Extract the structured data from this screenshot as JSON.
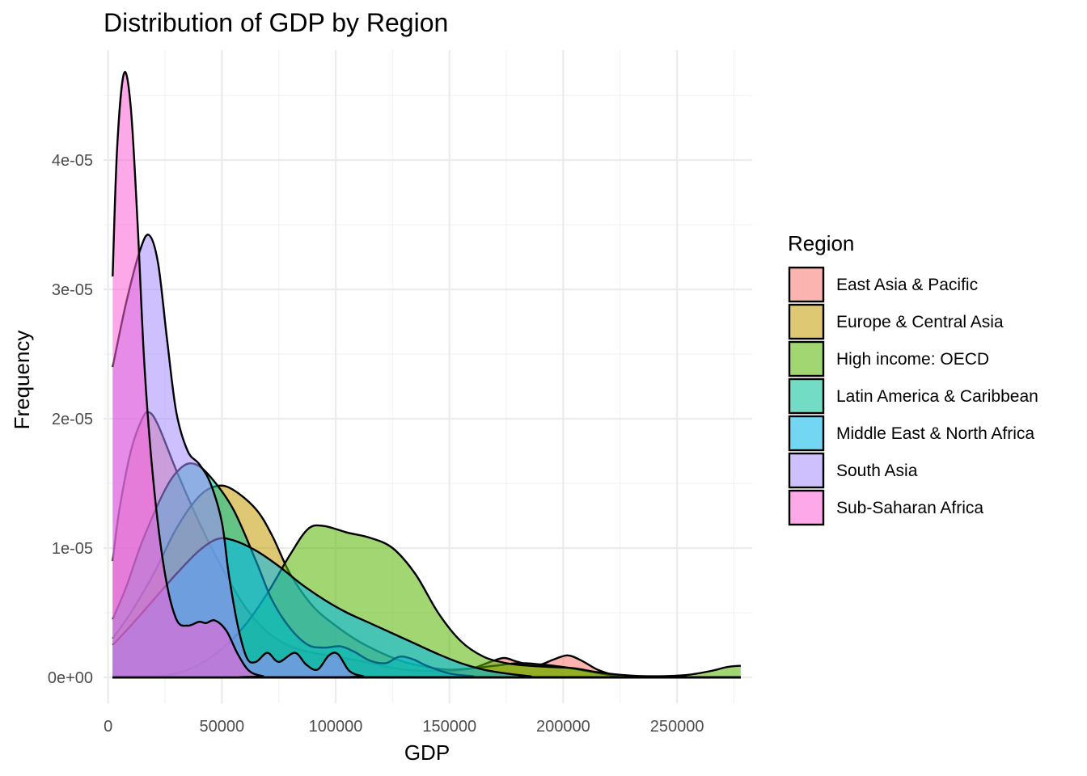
{
  "chart_data": {
    "type": "area",
    "title": "Distribution of GDP by Region",
    "xlabel": "GDP",
    "ylabel": "Frequency",
    "xlim": [
      -2000,
      283000
    ],
    "ylim": [
      -2e-06,
      4.85e-05
    ],
    "x_ticks": [
      0,
      50000,
      100000,
      150000,
      200000,
      250000
    ],
    "x_tick_labels": [
      "0",
      "50000",
      "100000",
      "150000",
      "200000",
      "250000"
    ],
    "y_ticks": [
      0,
      1e-05,
      2e-05,
      3e-05,
      4e-05
    ],
    "y_tick_labels": [
      "0e+00",
      "1e-05",
      "2e-05",
      "3e-05",
      "4e-05"
    ],
    "grid": true,
    "legend_title": "Region",
    "legend_position": "right",
    "fill_opacity": 0.55,
    "series": [
      {
        "name": "East Asia & Pacific",
        "color": "#F8766D",
        "points": [
          [
            2000,
            9e-06
          ],
          [
            5000,
            1.3e-05
          ],
          [
            10000,
            1.75e-05
          ],
          [
            15000,
            2e-05
          ],
          [
            18000,
            2.05e-05
          ],
          [
            22000,
            1.95e-05
          ],
          [
            30000,
            1.6e-05
          ],
          [
            40000,
            1.2e-05
          ],
          [
            50000,
            8.5e-06
          ],
          [
            60000,
            5.5e-06
          ],
          [
            70000,
            3.5e-06
          ],
          [
            80000,
            2.4e-06
          ],
          [
            90000,
            1.9e-06
          ],
          [
            100000,
            1.6e-06
          ],
          [
            110000,
            1.3e-06
          ],
          [
            120000,
            9e-07
          ],
          [
            130000,
            6e-07
          ],
          [
            140000,
            5e-07
          ],
          [
            150000,
            5e-07
          ],
          [
            160000,
            7e-07
          ],
          [
            168000,
            1.2e-06
          ],
          [
            174000,
            1.5e-06
          ],
          [
            180000,
            1.2e-06
          ],
          [
            188000,
            9e-07
          ],
          [
            196000,
            1.4e-06
          ],
          [
            202000,
            1.7e-06
          ],
          [
            208000,
            1.3e-06
          ],
          [
            215000,
            6e-07
          ],
          [
            222000,
            2e-07
          ],
          [
            230000,
            0
          ],
          [
            278000,
            0
          ]
        ]
      },
      {
        "name": "Europe & Central Asia",
        "color": "#C49A00",
        "points": [
          [
            2000,
            3e-06
          ],
          [
            10000,
            5e-06
          ],
          [
            20000,
            8e-06
          ],
          [
            30000,
            1.15e-05
          ],
          [
            40000,
            1.4e-05
          ],
          [
            48000,
            1.48e-05
          ],
          [
            55000,
            1.45e-05
          ],
          [
            65000,
            1.3e-05
          ],
          [
            72000,
            1.1e-05
          ],
          [
            80000,
            8e-06
          ],
          [
            90000,
            5.5e-06
          ],
          [
            100000,
            4e-06
          ],
          [
            110000,
            2.8e-06
          ],
          [
            120000,
            1.9e-06
          ],
          [
            130000,
            1.2e-06
          ],
          [
            140000,
            8e-07
          ],
          [
            150000,
            6e-07
          ],
          [
            160000,
            7e-07
          ],
          [
            170000,
            9e-07
          ],
          [
            180000,
            1.1e-06
          ],
          [
            190000,
            1e-06
          ],
          [
            200000,
            8e-07
          ],
          [
            210000,
            5e-07
          ],
          [
            220000,
            2e-07
          ],
          [
            230000,
            0
          ],
          [
            278000,
            0
          ]
        ]
      },
      {
        "name": "High income: OECD",
        "color": "#53B400",
        "points": [
          [
            2000,
            1e-07
          ],
          [
            20000,
            1e-07
          ],
          [
            30000,
            3e-07
          ],
          [
            40000,
            1e-06
          ],
          [
            50000,
            2.2e-06
          ],
          [
            60000,
            4e-06
          ],
          [
            70000,
            6.5e-06
          ],
          [
            80000,
            9.5e-06
          ],
          [
            88000,
            1.15e-05
          ],
          [
            95000,
            1.17e-05
          ],
          [
            105000,
            1.12e-05
          ],
          [
            115000,
            1.08e-05
          ],
          [
            125000,
            1e-05
          ],
          [
            135000,
            8e-06
          ],
          [
            145000,
            5e-06
          ],
          [
            155000,
            2.8e-06
          ],
          [
            165000,
            1.6e-06
          ],
          [
            175000,
            1.1e-06
          ],
          [
            185000,
            9e-07
          ],
          [
            195000,
            8e-07
          ],
          [
            205000,
            7e-07
          ],
          [
            215000,
            4e-07
          ],
          [
            225000,
            2e-07
          ],
          [
            235000,
            1e-07
          ],
          [
            245000,
            1e-07
          ],
          [
            255000,
            2e-07
          ],
          [
            265000,
            5e-07
          ],
          [
            272000,
            8e-07
          ],
          [
            278000,
            9e-07
          ]
        ]
      },
      {
        "name": "Latin America & Caribbean",
        "color": "#00C094",
        "points": [
          [
            2000,
            4.5e-06
          ],
          [
            8000,
            7e-06
          ],
          [
            15000,
            1.05e-05
          ],
          [
            25000,
            1.45e-05
          ],
          [
            32000,
            1.62e-05
          ],
          [
            38000,
            1.65e-05
          ],
          [
            45000,
            1.55e-05
          ],
          [
            55000,
            1.3e-05
          ],
          [
            65000,
            9e-06
          ],
          [
            72000,
            6e-06
          ],
          [
            80000,
            3.8e-06
          ],
          [
            88000,
            2.5e-06
          ],
          [
            95000,
            2.3e-06
          ],
          [
            102000,
            2.4e-06
          ],
          [
            108000,
            2e-06
          ],
          [
            115000,
            1.3e-06
          ],
          [
            122000,
            1.1e-06
          ],
          [
            128000,
            1.6e-06
          ],
          [
            134000,
            1.4e-06
          ],
          [
            140000,
            9e-07
          ],
          [
            150000,
            3e-07
          ],
          [
            160000,
            1e-07
          ],
          [
            170000,
            0
          ],
          [
            278000,
            0
          ]
        ]
      },
      {
        "name": "Middle East & North Africa",
        "color": "#00B6EB",
        "points": [
          [
            2000,
            2.5e-06
          ],
          [
            10000,
            4e-06
          ],
          [
            20000,
            6e-06
          ],
          [
            30000,
            8e-06
          ],
          [
            40000,
            9.8e-06
          ],
          [
            48000,
            1.07e-05
          ],
          [
            55000,
            1.06e-05
          ],
          [
            65000,
            9.8e-06
          ],
          [
            75000,
            8.6e-06
          ],
          [
            85000,
            7.2e-06
          ],
          [
            95000,
            6e-06
          ],
          [
            105000,
            5e-06
          ],
          [
            115000,
            4.2e-06
          ],
          [
            125000,
            3.4e-06
          ],
          [
            135000,
            2.6e-06
          ],
          [
            145000,
            1.8e-06
          ],
          [
            155000,
            1.1e-06
          ],
          [
            165000,
            6e-07
          ],
          [
            175000,
            3e-07
          ],
          [
            185000,
            1e-07
          ],
          [
            195000,
            0
          ],
          [
            278000,
            0
          ]
        ]
      },
      {
        "name": "South Asia",
        "color": "#A58AFF",
        "points": [
          [
            2000,
            2.4e-05
          ],
          [
            8000,
            2.9e-05
          ],
          [
            14000,
            3.3e-05
          ],
          [
            18000,
            3.42e-05
          ],
          [
            22000,
            3.2e-05
          ],
          [
            26000,
            2.6e-05
          ],
          [
            30000,
            2.05e-05
          ],
          [
            35000,
            1.75e-05
          ],
          [
            40000,
            1.65e-05
          ],
          [
            45000,
            1.5e-05
          ],
          [
            50000,
            1.2e-05
          ],
          [
            53000,
            8e-06
          ],
          [
            57000,
            4e-06
          ],
          [
            61000,
            1.5e-06
          ],
          [
            65000,
            1.2e-06
          ],
          [
            70000,
            1.9e-06
          ],
          [
            75000,
            1.2e-06
          ],
          [
            82000,
            1.9e-06
          ],
          [
            87000,
            1e-06
          ],
          [
            92000,
            6e-07
          ],
          [
            97000,
            1.7e-06
          ],
          [
            101000,
            1.8e-06
          ],
          [
            106000,
            5e-07
          ],
          [
            112000,
            1e-07
          ],
          [
            120000,
            0
          ],
          [
            278000,
            0
          ]
        ]
      },
      {
        "name": "Sub-Saharan Africa",
        "color": "#FB61D7",
        "points": [
          [
            2000,
            3.1e-05
          ],
          [
            4000,
            4.1e-05
          ],
          [
            7000,
            4.67e-05
          ],
          [
            10000,
            4.4e-05
          ],
          [
            13000,
            3.5e-05
          ],
          [
            16000,
            2.4e-05
          ],
          [
            20000,
            1.5e-05
          ],
          [
            25000,
            8e-06
          ],
          [
            30000,
            4.5e-06
          ],
          [
            35000,
            4e-06
          ],
          [
            40000,
            4.3e-06
          ],
          [
            43000,
            4.2e-06
          ],
          [
            47000,
            4.4e-06
          ],
          [
            52000,
            3.6e-06
          ],
          [
            57000,
            1.8e-06
          ],
          [
            62000,
            5e-07
          ],
          [
            68000,
            1e-07
          ],
          [
            75000,
            0
          ],
          [
            278000,
            0
          ]
        ]
      }
    ]
  }
}
